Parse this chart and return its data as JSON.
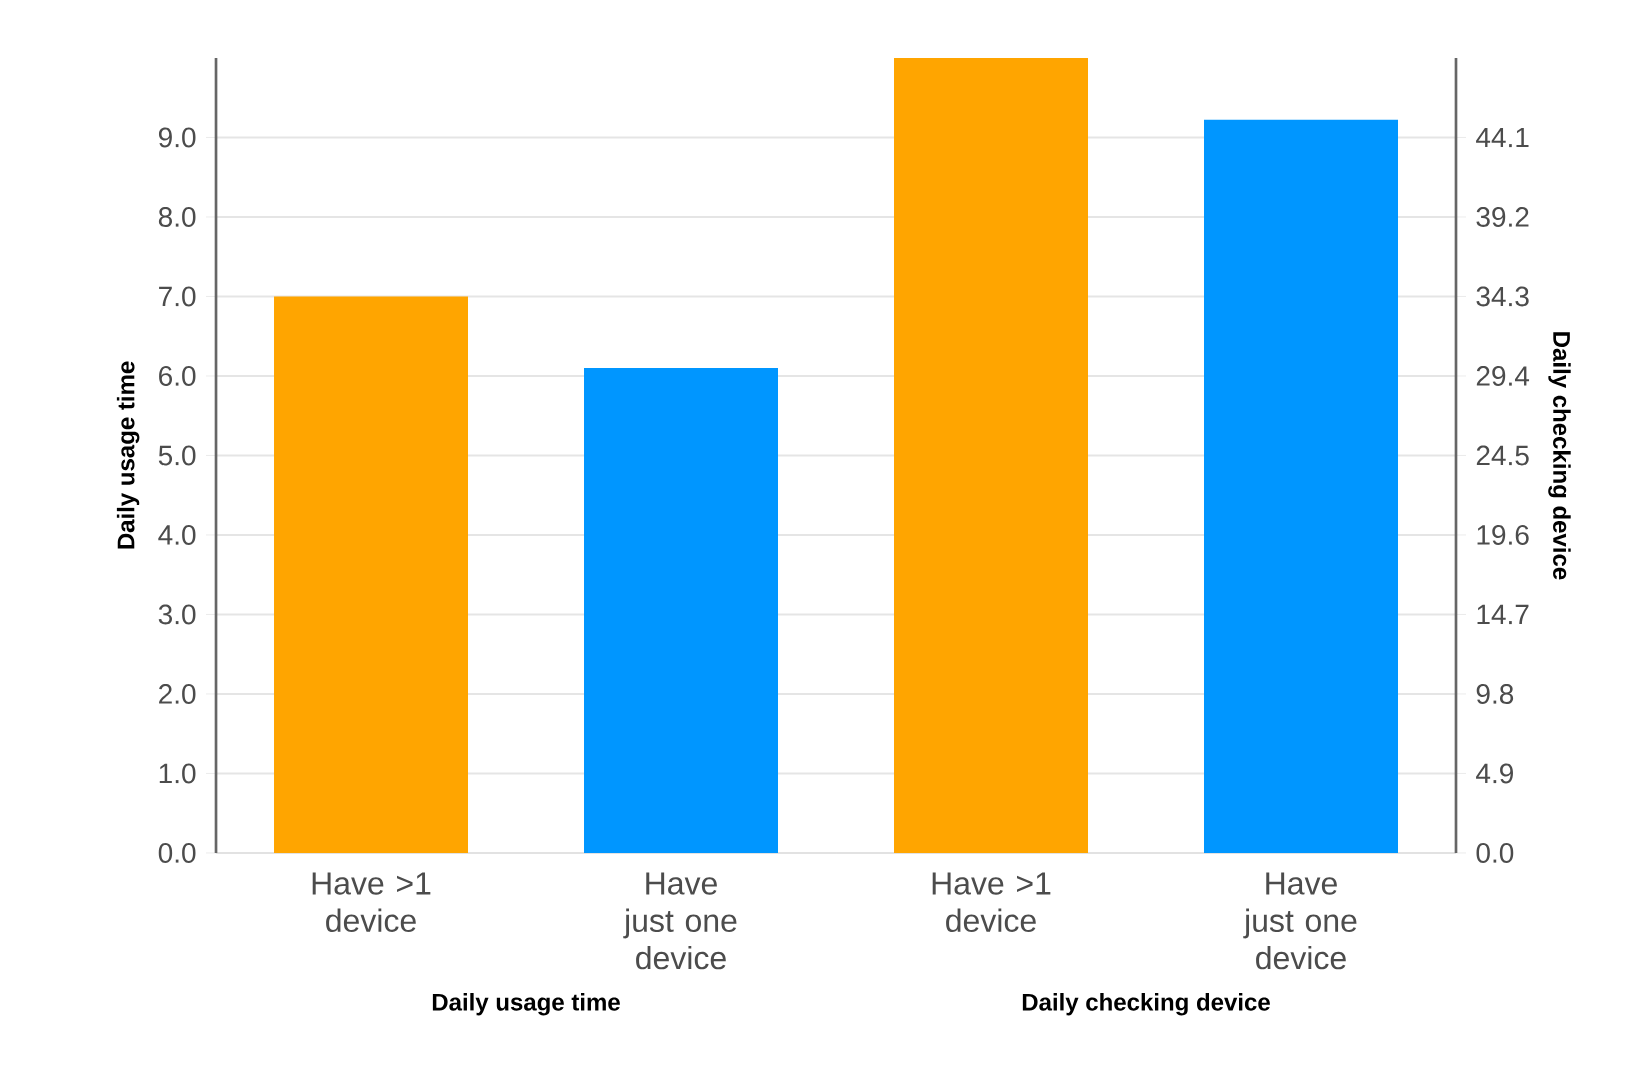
{
  "chart_data": [
    {
      "type": "bar",
      "categories": [
        "Have >1 device",
        "Have just one device"
      ],
      "xlabel": "Daily usage time",
      "ylabel": "Daily usage time",
      "grid": "y",
      "ylim": [
        0,
        10
      ],
      "yticks": [
        {
          "value": 0,
          "label": "0.0"
        },
        {
          "value": 1,
          "label": "1.0"
        },
        {
          "value": 2,
          "label": "2.0"
        },
        {
          "value": 3,
          "label": "3.0"
        },
        {
          "value": 4,
          "label": "4.0"
        },
        {
          "value": 5,
          "label": "5.0"
        },
        {
          "value": 6,
          "label": "6.0"
        },
        {
          "value": 7,
          "label": "7.0"
        },
        {
          "value": 8,
          "label": "8.0"
        },
        {
          "value": 9,
          "label": "9.0"
        }
      ],
      "series": [
        {
          "values": [
            7.0,
            6.1
          ],
          "colors": [
            "#ffa500",
            "#0096ff"
          ]
        }
      ]
    },
    {
      "type": "bar",
      "categories": [
        "Have >1 device",
        "Have just one device"
      ],
      "xlabel": "Daily checking device",
      "y2label": "Daily checking device",
      "grid": "y",
      "y2lim": [
        0,
        49
      ],
      "y2ticks": [
        {
          "value": 0,
          "label": "0.0"
        },
        4.9,
        9.8,
        14.7,
        19.6,
        24.5,
        29.4,
        34.3,
        39.2,
        44.1
      ],
      "series": [
        {
          "axis": "y2",
          "values": [
            49.0,
            45.2
          ],
          "colors": [
            "#ffa500",
            "#0096ff"
          ]
        }
      ]
    }
  ]
}
